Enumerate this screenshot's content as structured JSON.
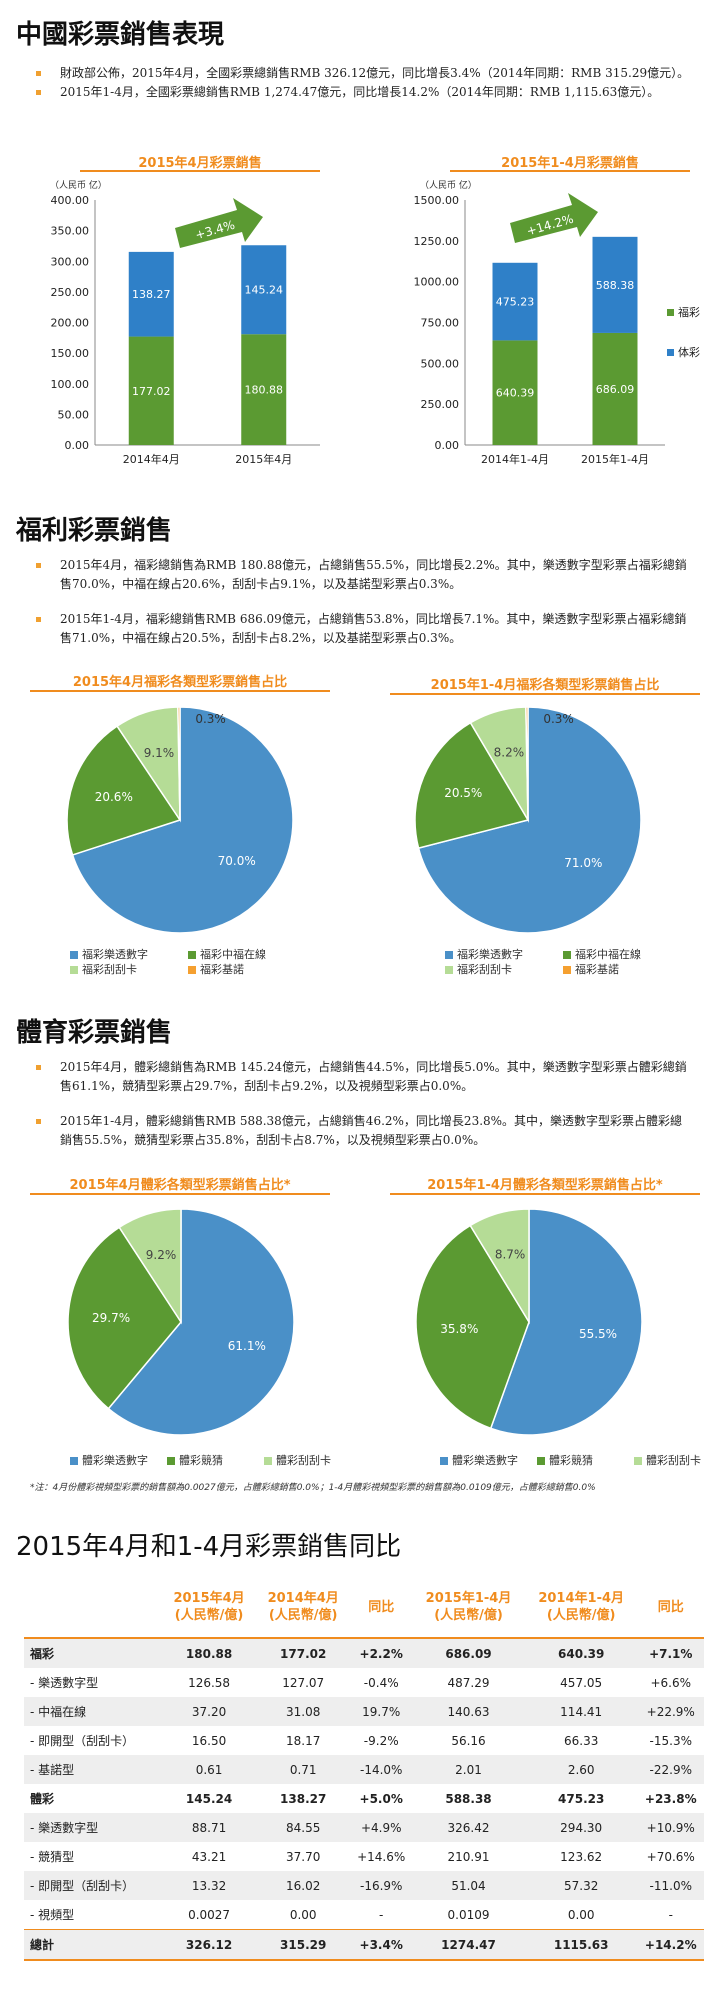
{
  "section1": {
    "title": "中國彩票銷售表現",
    "bullets": [
      "財政部公佈，2015年4月，全國彩票總銷售RMB 326.12億元，同比增長3.4%（2014年同期：RMB 315.29億元）。",
      "2015年1-4月，全國彩票總銷售RMB 1,274.47億元，同比增長14.2%（2014年同期：RMB 1,115.63億元）。"
    ]
  },
  "section2": {
    "title": "福利彩票銷售",
    "bullets": [
      "2015年4月，福彩總銷售為RMB 180.88億元，占總銷售55.5%，同比增長2.2%。其中，樂透數字型彩票占福彩總銷售70.0%，中福在線占20.6%，刮刮卡占9.1%，以及基諾型彩票占0.3%。",
      "2015年1-4月，福彩總銷售RMB 686.09億元，占總銷售53.8%，同比增長7.1%。其中，樂透數字型彩票占福彩總銷售71.0%，中福在線占20.5%，刮刮卡占8.2%，以及基諾型彩票占0.3%。"
    ]
  },
  "section3": {
    "title": "體育彩票銷售",
    "bullets": [
      "2015年4月，體彩總銷售為RMB 145.24億元，占總銷售44.5%，同比增長5.0%。其中，樂透數字型彩票占體彩總銷售61.1%，競猜型彩票占29.7%，刮刮卡占9.2%，以及視頻型彩票占0.0%。",
      "2015年1-4月，體彩總銷售RMB 588.38億元，占總銷售46.2%，同比增長23.8%。其中，樂透數字型彩票占體彩總銷售55.5%，競猜型彩票占35.8%，刮刮卡占8.7%，以及視頻型彩票占0.0%。"
    ]
  },
  "footnote": "*注：4月份體彩視頻型彩票的銷售額為0.0027億元，占體彩總銷售0.0%；1-4月體彩視頻型彩票的銷售額為0.0109億元，占體彩總銷售0.0%",
  "colors": {
    "fucai": "#5b9a32",
    "ticai": "#2f80c8",
    "accent": "#f08c1e",
    "lotto": "#4a90c8",
    "zhongfu": "#5b9a32",
    "scratch": "#b5dc96",
    "keno": "#f5a030"
  },
  "chart_data": [
    {
      "type": "bar",
      "stacked": true,
      "title": "2015年4月彩票銷售",
      "ylabel": "（人民币 亿）",
      "ylim": [
        0,
        400
      ],
      "yticks": [
        "0.00",
        "50.00",
        "100.00",
        "150.00",
        "200.00",
        "250.00",
        "300.00",
        "350.00",
        "400.00"
      ],
      "categories": [
        "2014年4月",
        "2015年4月"
      ],
      "series": [
        {
          "name": "",
          "values": [
            177.02,
            180.88
          ],
          "labels": [
            "177.02",
            "180.88"
          ]
        },
        {
          "name": "",
          "values": [
            138.27,
            145.24
          ],
          "labels": [
            "138.27",
            "145.24"
          ]
        }
      ],
      "annotation": "+3.4%"
    },
    {
      "type": "bar",
      "stacked": true,
      "title": "2015年1-4月彩票銷售",
      "ylabel": "（人民币 亿）",
      "ylim": [
        0,
        1500
      ],
      "yticks": [
        "0.00",
        "250.00",
        "500.00",
        "750.00",
        "1000.00",
        "1250.00",
        "1500.00"
      ],
      "categories": [
        "2014年1-4月",
        "2015年1-4月"
      ],
      "series": [
        {
          "name": "福彩",
          "values": [
            640.39,
            686.09
          ],
          "labels": [
            "640.39",
            "686.09"
          ]
        },
        {
          "name": "体彩",
          "values": [
            475.23,
            588.38
          ],
          "labels": [
            "475.23",
            "588.38"
          ]
        }
      ],
      "annotation": "+14.2%"
    },
    {
      "type": "pie",
      "title": "2015年4月福彩各類型彩票銷售占比",
      "labels": [
        "福彩樂透數字",
        "福彩中福在線",
        "福彩刮刮卡",
        "福彩基諾"
      ],
      "values": [
        70.0,
        20.6,
        9.1,
        0.3
      ],
      "value_labels": [
        "70.0%",
        "20.6%",
        "9.1%",
        "0.3%"
      ]
    },
    {
      "type": "pie",
      "title": "2015年1-4月福彩各類型彩票銷售占比",
      "labels": [
        "福彩樂透數字",
        "福彩中福在線",
        "福彩刮刮卡",
        "福彩基諾"
      ],
      "values": [
        71.0,
        20.5,
        8.2,
        0.3
      ],
      "value_labels": [
        "71.0%",
        "20.5%",
        "8.2%",
        "0.3%"
      ]
    },
    {
      "type": "pie",
      "title": "2015年4月體彩各類型彩票銷售占比*",
      "labels": [
        "體彩樂透數字",
        "體彩競猜",
        "體彩刮刮卡"
      ],
      "values": [
        61.1,
        29.7,
        9.2
      ],
      "value_labels": [
        "61.1%",
        "29.7%",
        "9.2%"
      ]
    },
    {
      "type": "pie",
      "title": "2015年1-4月體彩各類型彩票銷售占比*",
      "labels": [
        "體彩樂透數字",
        "體彩競猜",
        "體彩刮刮卡"
      ],
      "values": [
        55.5,
        35.8,
        8.7
      ],
      "value_labels": [
        "55.5%",
        "35.8%",
        "8.7%"
      ]
    }
  ],
  "table": {
    "title": "2015年4月和1-4月彩票銷售同比",
    "headers": [
      "",
      "2015年4月\n(人民幣/億)",
      "2014年4月\n(人民幣/億)",
      "同比",
      "2015年1-4月\n(人民幣/億)",
      "2014年1-4月\n(人民幣/億)",
      "同比"
    ],
    "rows": [
      {
        "cells": [
          "福彩",
          "180.88",
          "177.02",
          "+2.2%",
          "686.09",
          "640.39",
          "+7.1%"
        ],
        "bold": true
      },
      {
        "cells": [
          "- 樂透數字型",
          "126.58",
          "127.07",
          "-0.4%",
          "487.29",
          "457.05",
          "+6.6%"
        ]
      },
      {
        "cells": [
          "- 中福在線",
          "37.20",
          "31.08",
          "19.7%",
          "140.63",
          "114.41",
          "+22.9%"
        ]
      },
      {
        "cells": [
          "- 即開型（刮刮卡）",
          "16.50",
          "18.17",
          "-9.2%",
          "56.16",
          "66.33",
          "-15.3%"
        ]
      },
      {
        "cells": [
          "- 基諾型",
          "0.61",
          "0.71",
          "-14.0%",
          "2.01",
          "2.60",
          "-22.9%"
        ]
      },
      {
        "cells": [
          "體彩",
          "145.24",
          "138.27",
          "+5.0%",
          "588.38",
          "475.23",
          "+23.8%"
        ],
        "bold": true
      },
      {
        "cells": [
          "- 樂透數字型",
          "88.71",
          "84.55",
          "+4.9%",
          "326.42",
          "294.30",
          "+10.9%"
        ]
      },
      {
        "cells": [
          "- 競猜型",
          "43.21",
          "37.70",
          "+14.6%",
          "210.91",
          "123.62",
          "+70.6%"
        ]
      },
      {
        "cells": [
          "- 即開型（刮刮卡）",
          "13.32",
          "16.02",
          "-16.9%",
          "51.04",
          "57.32",
          "-11.0%"
        ]
      },
      {
        "cells": [
          "- 視頻型",
          "0.0027",
          "0.00",
          "-",
          "0.0109",
          "0.00",
          "-"
        ]
      },
      {
        "cells": [
          "總計",
          "326.12",
          "315.29",
          "+3.4%",
          "1274.47",
          "1115.63",
          "+14.2%"
        ],
        "bold": true
      }
    ]
  }
}
